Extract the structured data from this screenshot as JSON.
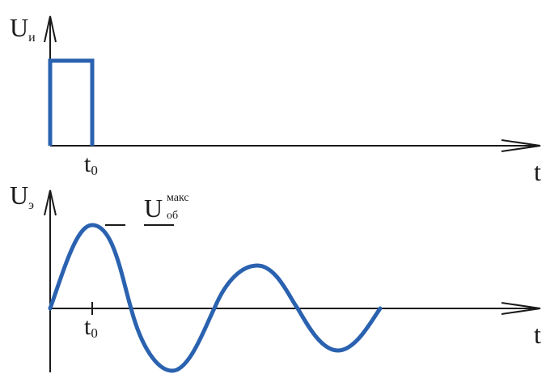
{
  "top_plot": {
    "ylabel": "U",
    "ylabel_sub": "и",
    "xlabel": "t",
    "tick_label": "t",
    "tick_label_sub": "0"
  },
  "bottom_plot": {
    "ylabel": "U",
    "ylabel_sub": "э",
    "xlabel": "t",
    "tick_label": "t",
    "tick_label_sub": "0",
    "peak_label": "U",
    "peak_label_sup": "макс",
    "peak_label_sub": "об"
  },
  "colors": {
    "signal": "#2a62b0",
    "axis": "#1a1a1a"
  }
}
